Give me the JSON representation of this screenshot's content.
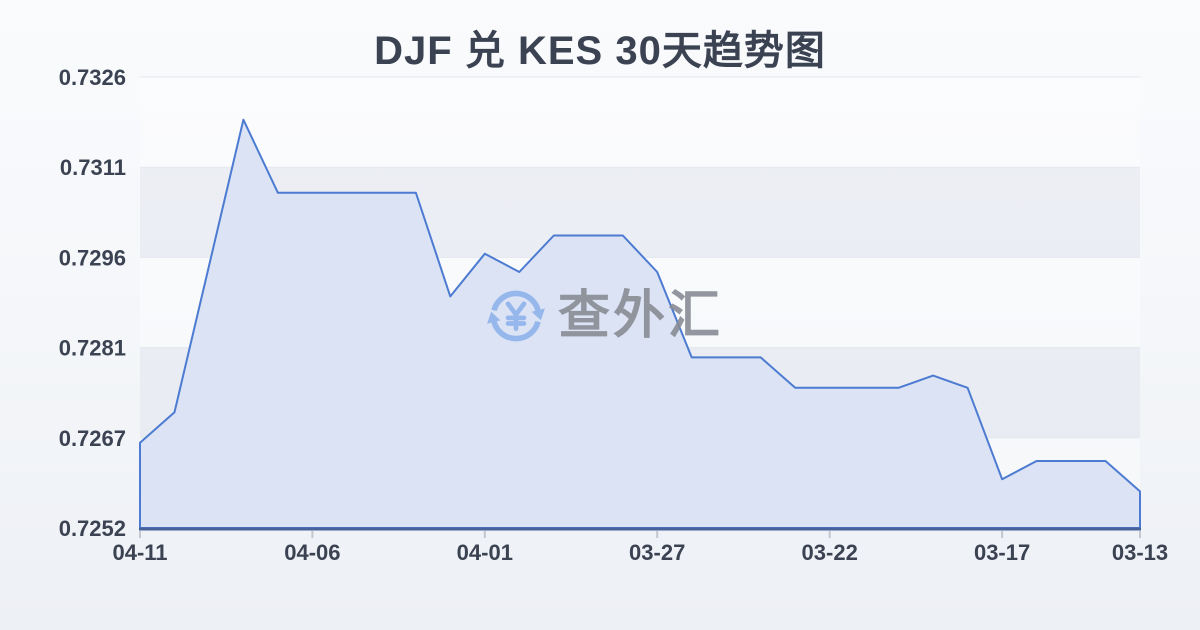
{
  "page": {
    "title": "DJF 兑 KES 30天趋势图"
  },
  "watermark": {
    "icon": "currency-exchange-icon",
    "text": "查外汇",
    "icon_color": "#8fb3ea",
    "text_color": "rgba(135,139,147,0.9)"
  },
  "chart_data": {
    "type": "area",
    "title": "DJF 兑 KES 30天趋势图",
    "x": [
      "04-11",
      "04-10",
      "04-09",
      "04-08",
      "04-07",
      "04-06",
      "04-05",
      "04-04",
      "04-03",
      "04-02",
      "04-01",
      "03-31",
      "03-30",
      "03-29",
      "03-28",
      "03-27",
      "03-26",
      "03-25",
      "03-24",
      "03-23",
      "03-22",
      "03-21",
      "03-20",
      "03-19",
      "03-18",
      "03-17",
      "03-16",
      "03-15",
      "03-14",
      "03-13"
    ],
    "values": [
      0.7266,
      0.7271,
      0.7295,
      0.7319,
      0.7307,
      0.7307,
      0.7307,
      0.7307,
      0.7307,
      0.729,
      0.7297,
      0.7294,
      0.73,
      0.73,
      0.73,
      0.7294,
      0.728,
      0.728,
      0.728,
      0.7275,
      0.7275,
      0.7275,
      0.7275,
      0.7277,
      0.7275,
      0.726,
      0.7263,
      0.7263,
      0.7263,
      0.7258
    ],
    "xtick_labels": [
      "04-11",
      "04-06",
      "04-01",
      "03-27",
      "03-22",
      "03-17",
      "03-13"
    ],
    "xtick_indices": [
      0,
      5,
      10,
      15,
      20,
      25,
      29
    ],
    "ytick_labels": [
      "0.7326",
      "0.7311",
      "0.7296",
      "0.7281",
      "0.7267",
      "0.7252"
    ],
    "ylim": [
      0.7252,
      0.7326
    ],
    "x_axis_reversed": true,
    "grid": true,
    "legend": "none",
    "line_color": "#4c7bd1",
    "fill_color": "#dbe3f5",
    "axis_color": "#46629b",
    "x_tick_mark_color": "#c2c7d0",
    "grid_color": "#e3e7ee",
    "band_light": "rgba(255,255,255,0.40)",
    "band_dark": "rgba(221,226,236,0.45)",
    "label_color": "#3b4353",
    "title_color": "#3b4353"
  }
}
